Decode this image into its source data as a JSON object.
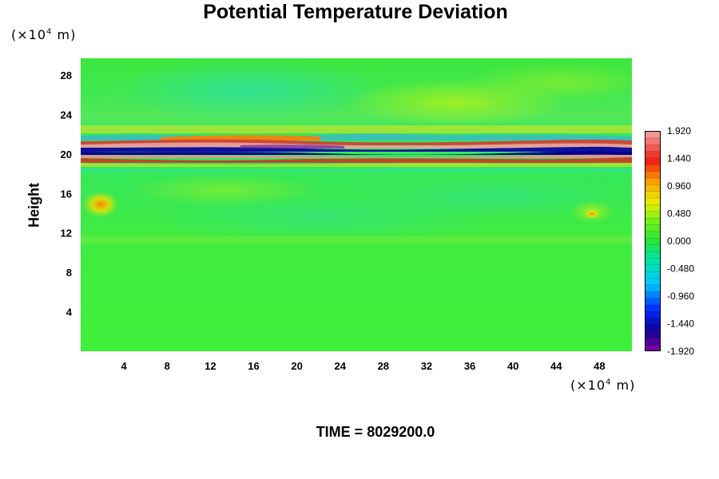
{
  "chart_data": {
    "type": "heatmap",
    "title": "Potential Temperature Deviation",
    "ylabel": "Height",
    "y_unit": {
      "prefix": "(×10",
      "exponent": "4",
      "suffix": " m)"
    },
    "x_unit": {
      "prefix": "(×10",
      "exponent": "4",
      "suffix": " m)"
    },
    "x_ticks": [
      4,
      8,
      12,
      16,
      20,
      24,
      28,
      32,
      36,
      40,
      44,
      48
    ],
    "y_ticks": [
      4,
      8,
      12,
      16,
      20,
      24,
      28
    ],
    "xlim": [
      0,
      51
    ],
    "ylim": [
      0,
      29.7
    ],
    "colorbar": {
      "min": -1.92,
      "max": 1.92,
      "levels": 33,
      "tick_labels": [
        "1.920",
        "1.440",
        "0.960",
        "0.480",
        "0.000",
        "-0.480",
        "-0.960",
        "-1.440",
        "-1.920"
      ],
      "tick_values": [
        1.92,
        1.44,
        0.96,
        0.48,
        0.0,
        -0.48,
        -0.96,
        -1.44,
        -1.92
      ]
    },
    "field_bands": [
      {
        "y": 21.5,
        "value": 1.4,
        "desc_range": "positive band"
      },
      {
        "y": 20.8,
        "value": -1.6,
        "desc_range": "negative band"
      },
      {
        "y": 20.2,
        "value": -1.9,
        "desc_range": "negative band"
      },
      {
        "y": 19.6,
        "value": 1.5,
        "desc_range": "positive band"
      }
    ],
    "background_value": 0.0
  },
  "footer": {
    "time_text": "TIME = 8029200.0"
  }
}
